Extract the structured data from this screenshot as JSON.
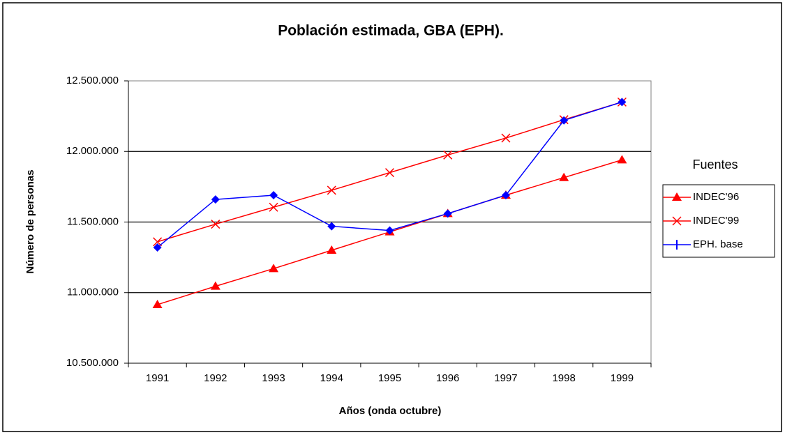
{
  "chart_data": {
    "type": "line",
    "title": "Población estimada, GBA (EPH).",
    "x_label": "Años (onda octubre)",
    "y_label": "Número de personas",
    "categories": [
      "1991",
      "1992",
      "1993",
      "1994",
      "1995",
      "1996",
      "1997",
      "1998",
      "1999"
    ],
    "legend_title": "Fuentes",
    "legend_position": "right",
    "grid": true,
    "ylim": [
      10500000,
      12500000
    ],
    "yticks": [
      {
        "value": 10500000,
        "label": "10.500.000"
      },
      {
        "value": 11000000,
        "label": "11.000.000"
      },
      {
        "value": 11500000,
        "label": "11.500.000"
      },
      {
        "value": 12000000,
        "label": "12.000.000"
      },
      {
        "value": 12500000,
        "label": "12.500.000"
      }
    ],
    "series": [
      {
        "name": "INDEC'96",
        "color": "#ff0000",
        "marker": "triangle",
        "values": [
          10915000,
          11045000,
          11170000,
          11300000,
          11430000,
          11560000,
          11690000,
          11815000,
          11940000
        ]
      },
      {
        "name": "INDEC'99",
        "color": "#ff0000",
        "marker": "x",
        "values": [
          11360000,
          11485000,
          11605000,
          11725000,
          11850000,
          11975000,
          12095000,
          12225000,
          12350000
        ]
      },
      {
        "name": "EPH. base",
        "color": "#0000ff",
        "marker": "diamond",
        "values": [
          11320000,
          11660000,
          11690000,
          11470000,
          11440000,
          11560000,
          11690000,
          12220000,
          12350000
        ]
      }
    ]
  }
}
